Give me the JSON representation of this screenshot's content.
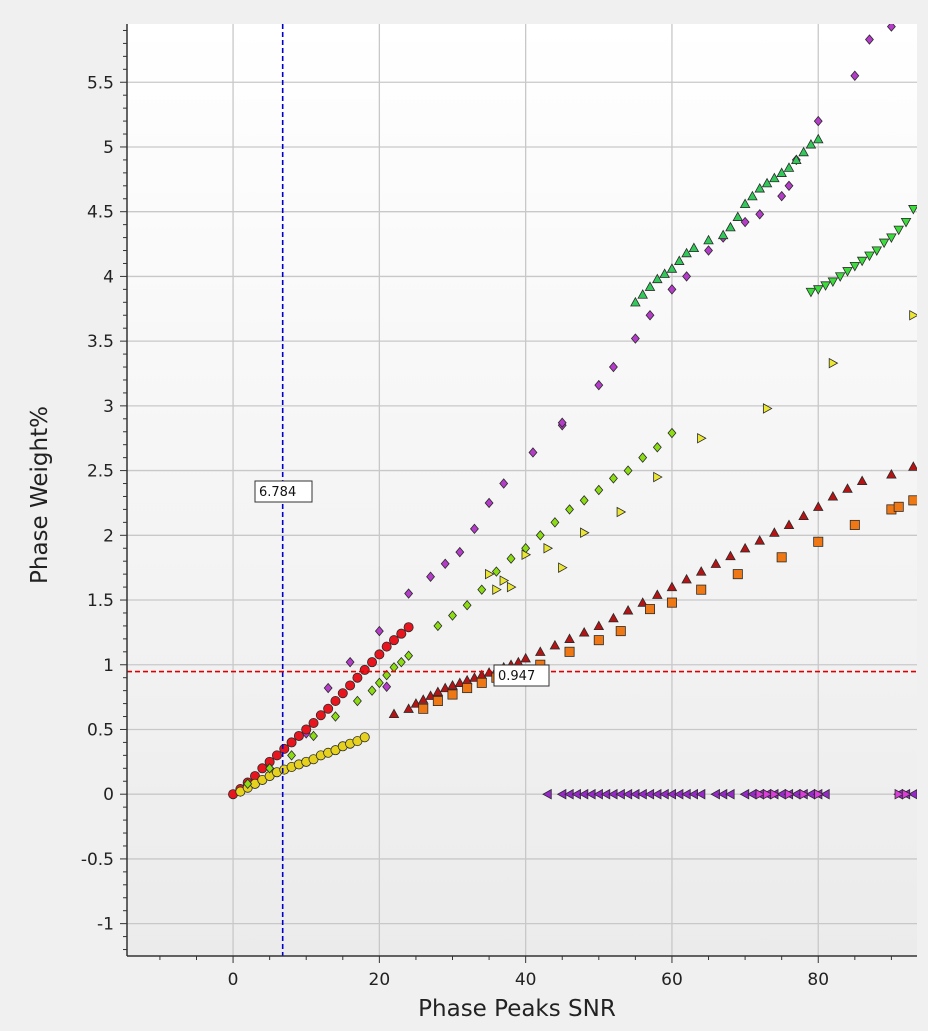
{
  "chart_data": {
    "type": "scatter",
    "title": "",
    "xlabel": "Phase Peaks SNR",
    "ylabel": "Phase Weight%",
    "xlim": [
      -14.5,
      93.5
    ],
    "ylim": [
      -1.25,
      5.95
    ],
    "x_ticks": [
      0,
      20,
      40,
      60,
      80
    ],
    "y_ticks": [
      -1,
      -0.5,
      0,
      0.5,
      1,
      1.5,
      2,
      2.5,
      3,
      3.5,
      4,
      4.5,
      5,
      5.5
    ],
    "grid": true,
    "legend": "none",
    "cursors": {
      "vertical": {
        "x": 6.784,
        "label": "6.784",
        "color": "#0000cc"
      },
      "horizontal": {
        "y": 0.947,
        "label": "0.947",
        "color": "#dd0000"
      }
    },
    "series": [
      {
        "marker": "diamond",
        "color": "#b43cc8",
        "x": [
          1,
          5,
          10,
          13,
          16,
          20,
          21,
          24,
          27,
          29,
          31,
          33,
          35,
          37,
          41,
          45,
          45,
          50,
          52,
          55,
          57,
          60,
          62,
          65,
          67,
          70,
          72,
          75,
          76,
          77,
          80,
          85,
          87,
          90
        ],
        "y": [
          0.02,
          0.2,
          0.47,
          0.82,
          1.02,
          1.26,
          0.83,
          1.55,
          1.68,
          1.78,
          1.87,
          2.05,
          2.25,
          2.4,
          2.64,
          2.85,
          2.87,
          3.16,
          3.3,
          3.52,
          3.7,
          3.9,
          4.0,
          4.2,
          4.3,
          4.42,
          4.48,
          4.62,
          4.7,
          4.9,
          5.2,
          5.55,
          5.83,
          5.93
        ]
      },
      {
        "marker": "circle",
        "color": "#e8141e",
        "x": [
          0,
          1,
          2,
          3,
          4,
          5,
          6,
          7,
          8,
          9,
          10,
          11,
          12,
          13,
          14,
          15,
          16,
          17,
          18,
          19,
          20,
          21,
          22,
          23,
          24
        ],
        "y": [
          0.0,
          0.04,
          0.09,
          0.14,
          0.2,
          0.25,
          0.3,
          0.35,
          0.4,
          0.45,
          0.5,
          0.55,
          0.61,
          0.66,
          0.72,
          0.78,
          0.84,
          0.9,
          0.96,
          1.02,
          1.08,
          1.14,
          1.19,
          1.24,
          1.29
        ]
      },
      {
        "marker": "circle",
        "color": "#e6d21e",
        "x": [
          1,
          2,
          3,
          4,
          5,
          6,
          7,
          8,
          9,
          10,
          11,
          12,
          13,
          14,
          15,
          16,
          17,
          18
        ],
        "y": [
          0.02,
          0.05,
          0.08,
          0.11,
          0.14,
          0.17,
          0.19,
          0.21,
          0.23,
          0.25,
          0.27,
          0.3,
          0.32,
          0.34,
          0.37,
          0.39,
          0.41,
          0.44
        ]
      },
      {
        "marker": "diamond",
        "color": "#8cdc14",
        "x": [
          2,
          5,
          8,
          11,
          14,
          17,
          19,
          20,
          21,
          22,
          23,
          24,
          28,
          30,
          32,
          34,
          36,
          38,
          40,
          42,
          44,
          46,
          48,
          50,
          52,
          54,
          56,
          58,
          60
        ],
        "y": [
          0.08,
          0.2,
          0.3,
          0.45,
          0.6,
          0.72,
          0.8,
          0.86,
          0.92,
          0.98,
          1.02,
          1.07,
          1.3,
          1.38,
          1.46,
          1.58,
          1.72,
          1.82,
          1.9,
          2.0,
          2.1,
          2.2,
          2.27,
          2.35,
          2.44,
          2.5,
          2.6,
          2.68,
          2.79
        ]
      },
      {
        "marker": "triangle-right",
        "color": "#ebe632",
        "x": [
          35,
          36,
          37,
          38,
          40,
          43,
          45,
          48,
          53,
          58,
          64,
          73,
          82,
          93
        ],
        "y": [
          1.7,
          1.58,
          1.65,
          1.6,
          1.85,
          1.9,
          1.75,
          2.02,
          2.18,
          2.45,
          2.75,
          2.98,
          3.33,
          3.7
        ]
      },
      {
        "marker": "triangle-up",
        "color": "#b41414",
        "x": [
          22,
          24,
          25,
          26,
          27,
          28,
          29,
          30,
          31,
          32,
          33,
          34,
          35,
          36,
          37,
          38,
          39,
          40,
          42,
          44,
          46,
          48,
          50,
          52,
          54,
          56,
          58,
          60,
          62,
          64,
          66,
          68,
          70,
          72,
          74,
          76,
          78,
          80,
          82,
          84,
          86,
          90,
          93
        ],
        "y": [
          0.62,
          0.66,
          0.7,
          0.73,
          0.76,
          0.79,
          0.82,
          0.84,
          0.86,
          0.88,
          0.9,
          0.92,
          0.94,
          0.96,
          0.98,
          1.0,
          1.02,
          1.05,
          1.1,
          1.15,
          1.2,
          1.25,
          1.3,
          1.36,
          1.42,
          1.48,
          1.54,
          1.6,
          1.66,
          1.72,
          1.78,
          1.84,
          1.9,
          1.96,
          2.02,
          2.08,
          2.15,
          2.22,
          2.3,
          2.36,
          2.42,
          2.47,
          2.53
        ]
      },
      {
        "marker": "square",
        "color": "#f07814",
        "x": [
          26,
          28,
          30,
          32,
          34,
          36,
          38,
          42,
          46,
          50,
          53,
          57,
          60,
          64,
          69,
          75,
          80,
          85,
          90,
          91,
          93
        ],
        "y": [
          0.66,
          0.72,
          0.77,
          0.82,
          0.86,
          0.9,
          0.93,
          1.0,
          1.1,
          1.19,
          1.26,
          1.43,
          1.48,
          1.58,
          1.7,
          1.83,
          1.95,
          2.08,
          2.2,
          2.22,
          2.27
        ]
      },
      {
        "marker": "triangle-up",
        "color": "#32c85a",
        "x": [
          55,
          56,
          57,
          58,
          59,
          60,
          61,
          62,
          63,
          65,
          67,
          68,
          69,
          70,
          71,
          72,
          73,
          74,
          75,
          76,
          77,
          78,
          79,
          80
        ],
        "y": [
          3.8,
          3.86,
          3.92,
          3.98,
          4.02,
          4.06,
          4.12,
          4.18,
          4.22,
          4.28,
          4.32,
          4.38,
          4.46,
          4.56,
          4.62,
          4.68,
          4.72,
          4.76,
          4.8,
          4.84,
          4.9,
          4.96,
          5.02,
          5.06
        ]
      },
      {
        "marker": "triangle-down",
        "color": "#3cdc3c",
        "x": [
          79,
          80,
          81,
          82,
          83,
          84,
          85,
          86,
          87,
          88,
          89,
          90,
          91,
          92,
          93
        ],
        "y": [
          3.88,
          3.9,
          3.93,
          3.96,
          4.0,
          4.04,
          4.08,
          4.12,
          4.16,
          4.2,
          4.26,
          4.3,
          4.36,
          4.42,
          4.52
        ]
      },
      {
        "marker": "triangle-left",
        "color": "#9628c8",
        "x": [
          43,
          45,
          46,
          47,
          48,
          49,
          50,
          51,
          52,
          53,
          54,
          55,
          56,
          57,
          58,
          59,
          60,
          61,
          62,
          63,
          64,
          66,
          67,
          68,
          70,
          71,
          72,
          73,
          74,
          75,
          76,
          77,
          78,
          79,
          80,
          81,
          91,
          92,
          93
        ],
        "y": [
          0,
          0,
          0,
          0,
          0,
          0,
          0,
          0,
          0,
          0,
          0,
          0,
          0,
          0,
          0,
          0,
          0,
          0,
          0,
          0,
          0,
          0,
          0,
          0,
          0,
          0,
          0,
          0,
          0,
          0,
          0,
          0,
          0,
          0,
          0,
          0,
          0,
          0,
          0
        ]
      },
      {
        "marker": "triangle-right",
        "color": "#dc3cdc",
        "x": [
          72,
          73,
          74,
          76,
          78,
          80,
          91,
          92
        ],
        "y": [
          0,
          0,
          0,
          0,
          0,
          0,
          0,
          0
        ]
      }
    ]
  }
}
